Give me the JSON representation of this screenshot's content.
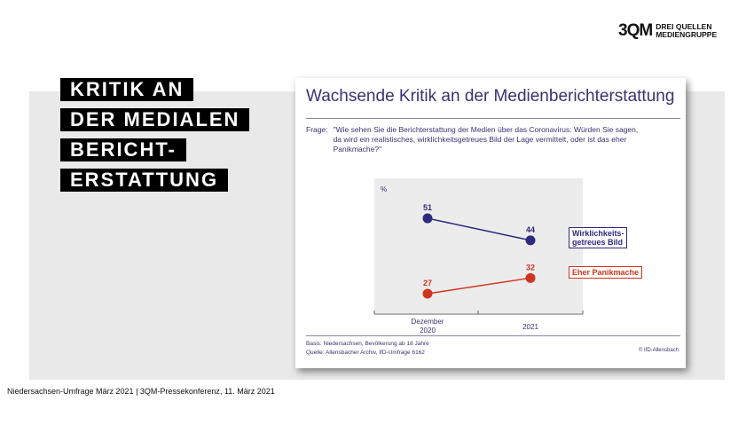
{
  "logo": {
    "mark": "3QM",
    "line1": "DREI QUELLEN",
    "line2": "MEDIENGRUPPE"
  },
  "headline": [
    "KRITIK AN",
    "DER MEDIALEN",
    "BERICHT-",
    "ERSTATTUNG"
  ],
  "card": {
    "title": "Wachsende Kritik an der Medienberichterstattung",
    "question_label": "Frage:",
    "question": "\"Wie sehen Sie die Berichterstattung der Medien über das Coronavirus: Würden Sie sagen, da wird ein realistisches, wirklichkeitsgetreues Bild der Lage vermittelt, oder ist das eher Panikmache?\"",
    "basis": "Basis: Niedersachsen, Bevölkerung ab 18 Jahre",
    "source": "Quelle: Allensbacher Archiv, IfD-Umfrage 6162",
    "copyright": "© IfD-Allensbach"
  },
  "chart_data": {
    "type": "line",
    "ylabel": "%",
    "categories": [
      "Dezember 2020",
      "2021"
    ],
    "series": [
      {
        "name": "Wirklichkeits-getreues Bild",
        "values": [
          51,
          44
        ],
        "color": "#2e2a7e"
      },
      {
        "name": "Eher Panikmache",
        "values": [
          27,
          32
        ],
        "color": "#d0331f"
      }
    ]
  },
  "footer": "Niedersachsen-Umfrage März 2021  |  3QM-Pressekonferenz, 11. März 2021"
}
